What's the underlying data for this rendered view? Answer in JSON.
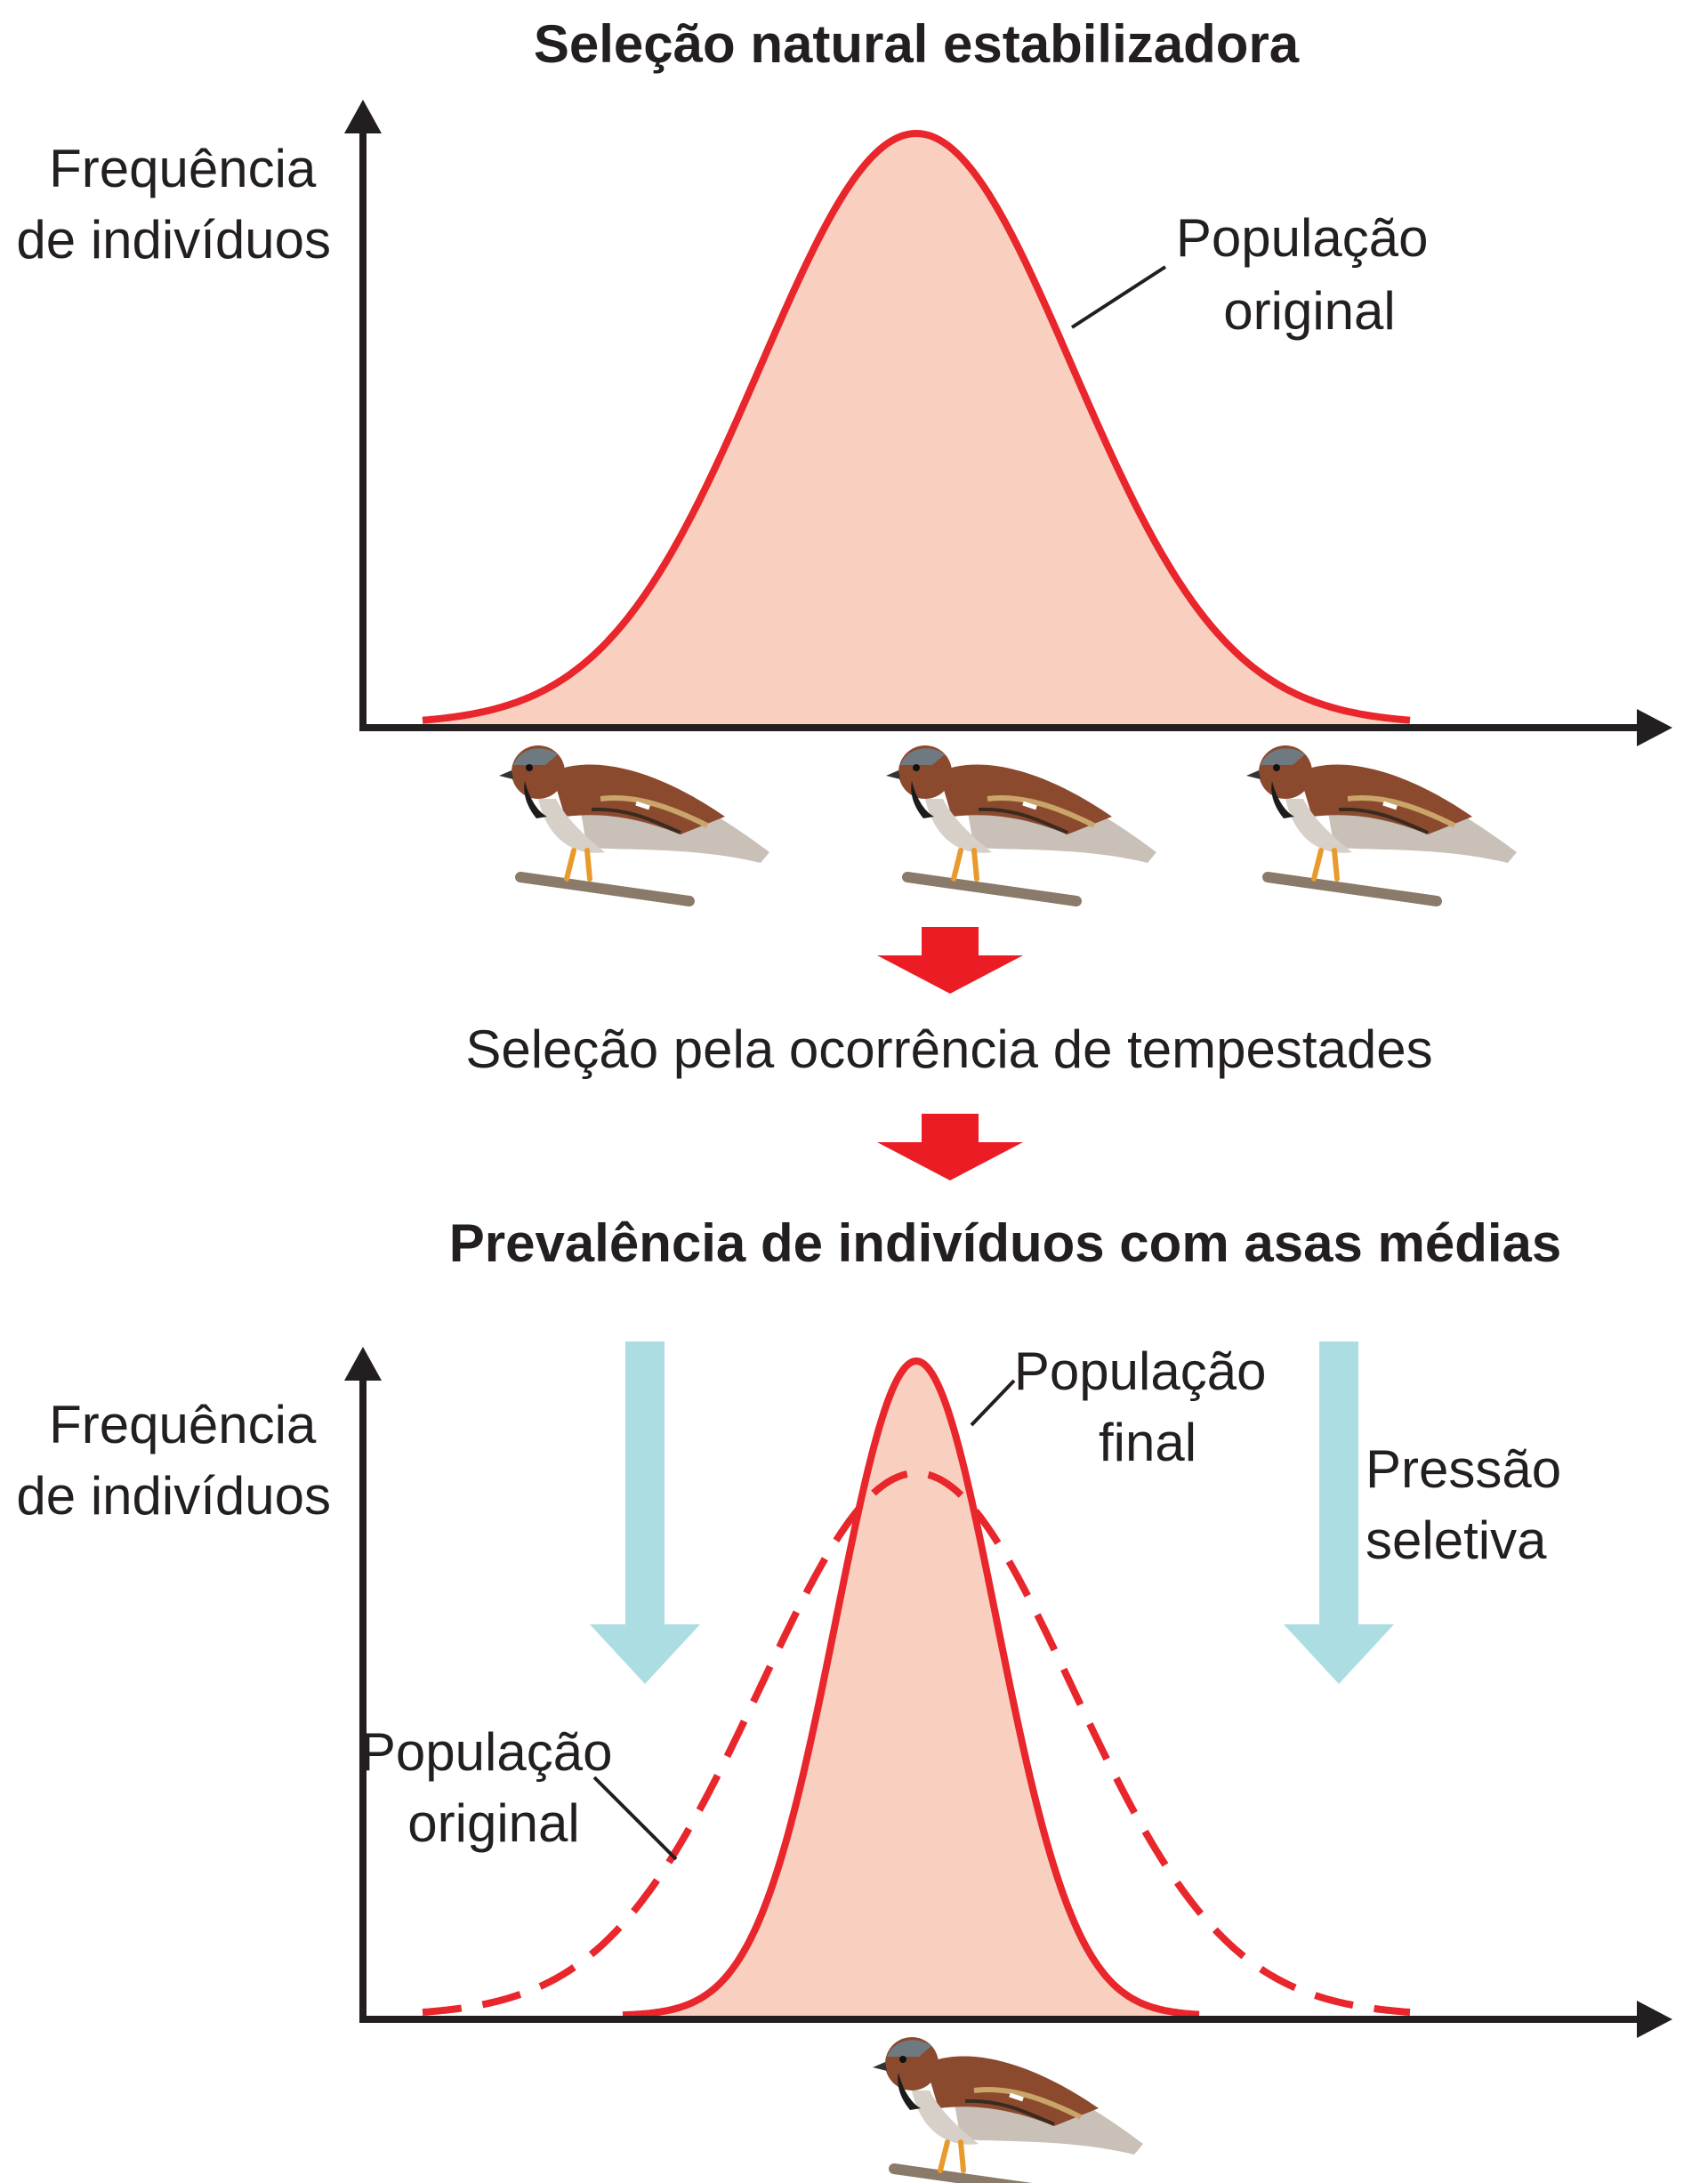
{
  "top_panel": {
    "title": "Seleção natural estabilizadora",
    "y_axis_label": [
      "Frequência",
      "de indivíduos"
    ],
    "curve_label": [
      "População",
      "original"
    ]
  },
  "middle": {
    "process_label": "Seleção pela ocorrência de tempestades",
    "result_title": "Prevalência de indivíduos com asas médias"
  },
  "bottom_panel": {
    "y_axis_label": [
      "Frequência",
      "de indivíduos"
    ],
    "final_label": [
      "População",
      "final"
    ],
    "original_label": [
      "População",
      "original"
    ],
    "pressure_label": [
      "Pressão",
      "seletiva"
    ]
  },
  "colors": {
    "curve": "#e8262c",
    "fill": "#f9cfbf",
    "axis": "#231f20",
    "pressure_arrow": "#abdde3",
    "flow_arrow": "#ec1c24"
  },
  "icons": {
    "bird": "sparrow-icon",
    "flow": "down-arrow-icon",
    "pressure": "selection-pressure-arrow-icon"
  }
}
